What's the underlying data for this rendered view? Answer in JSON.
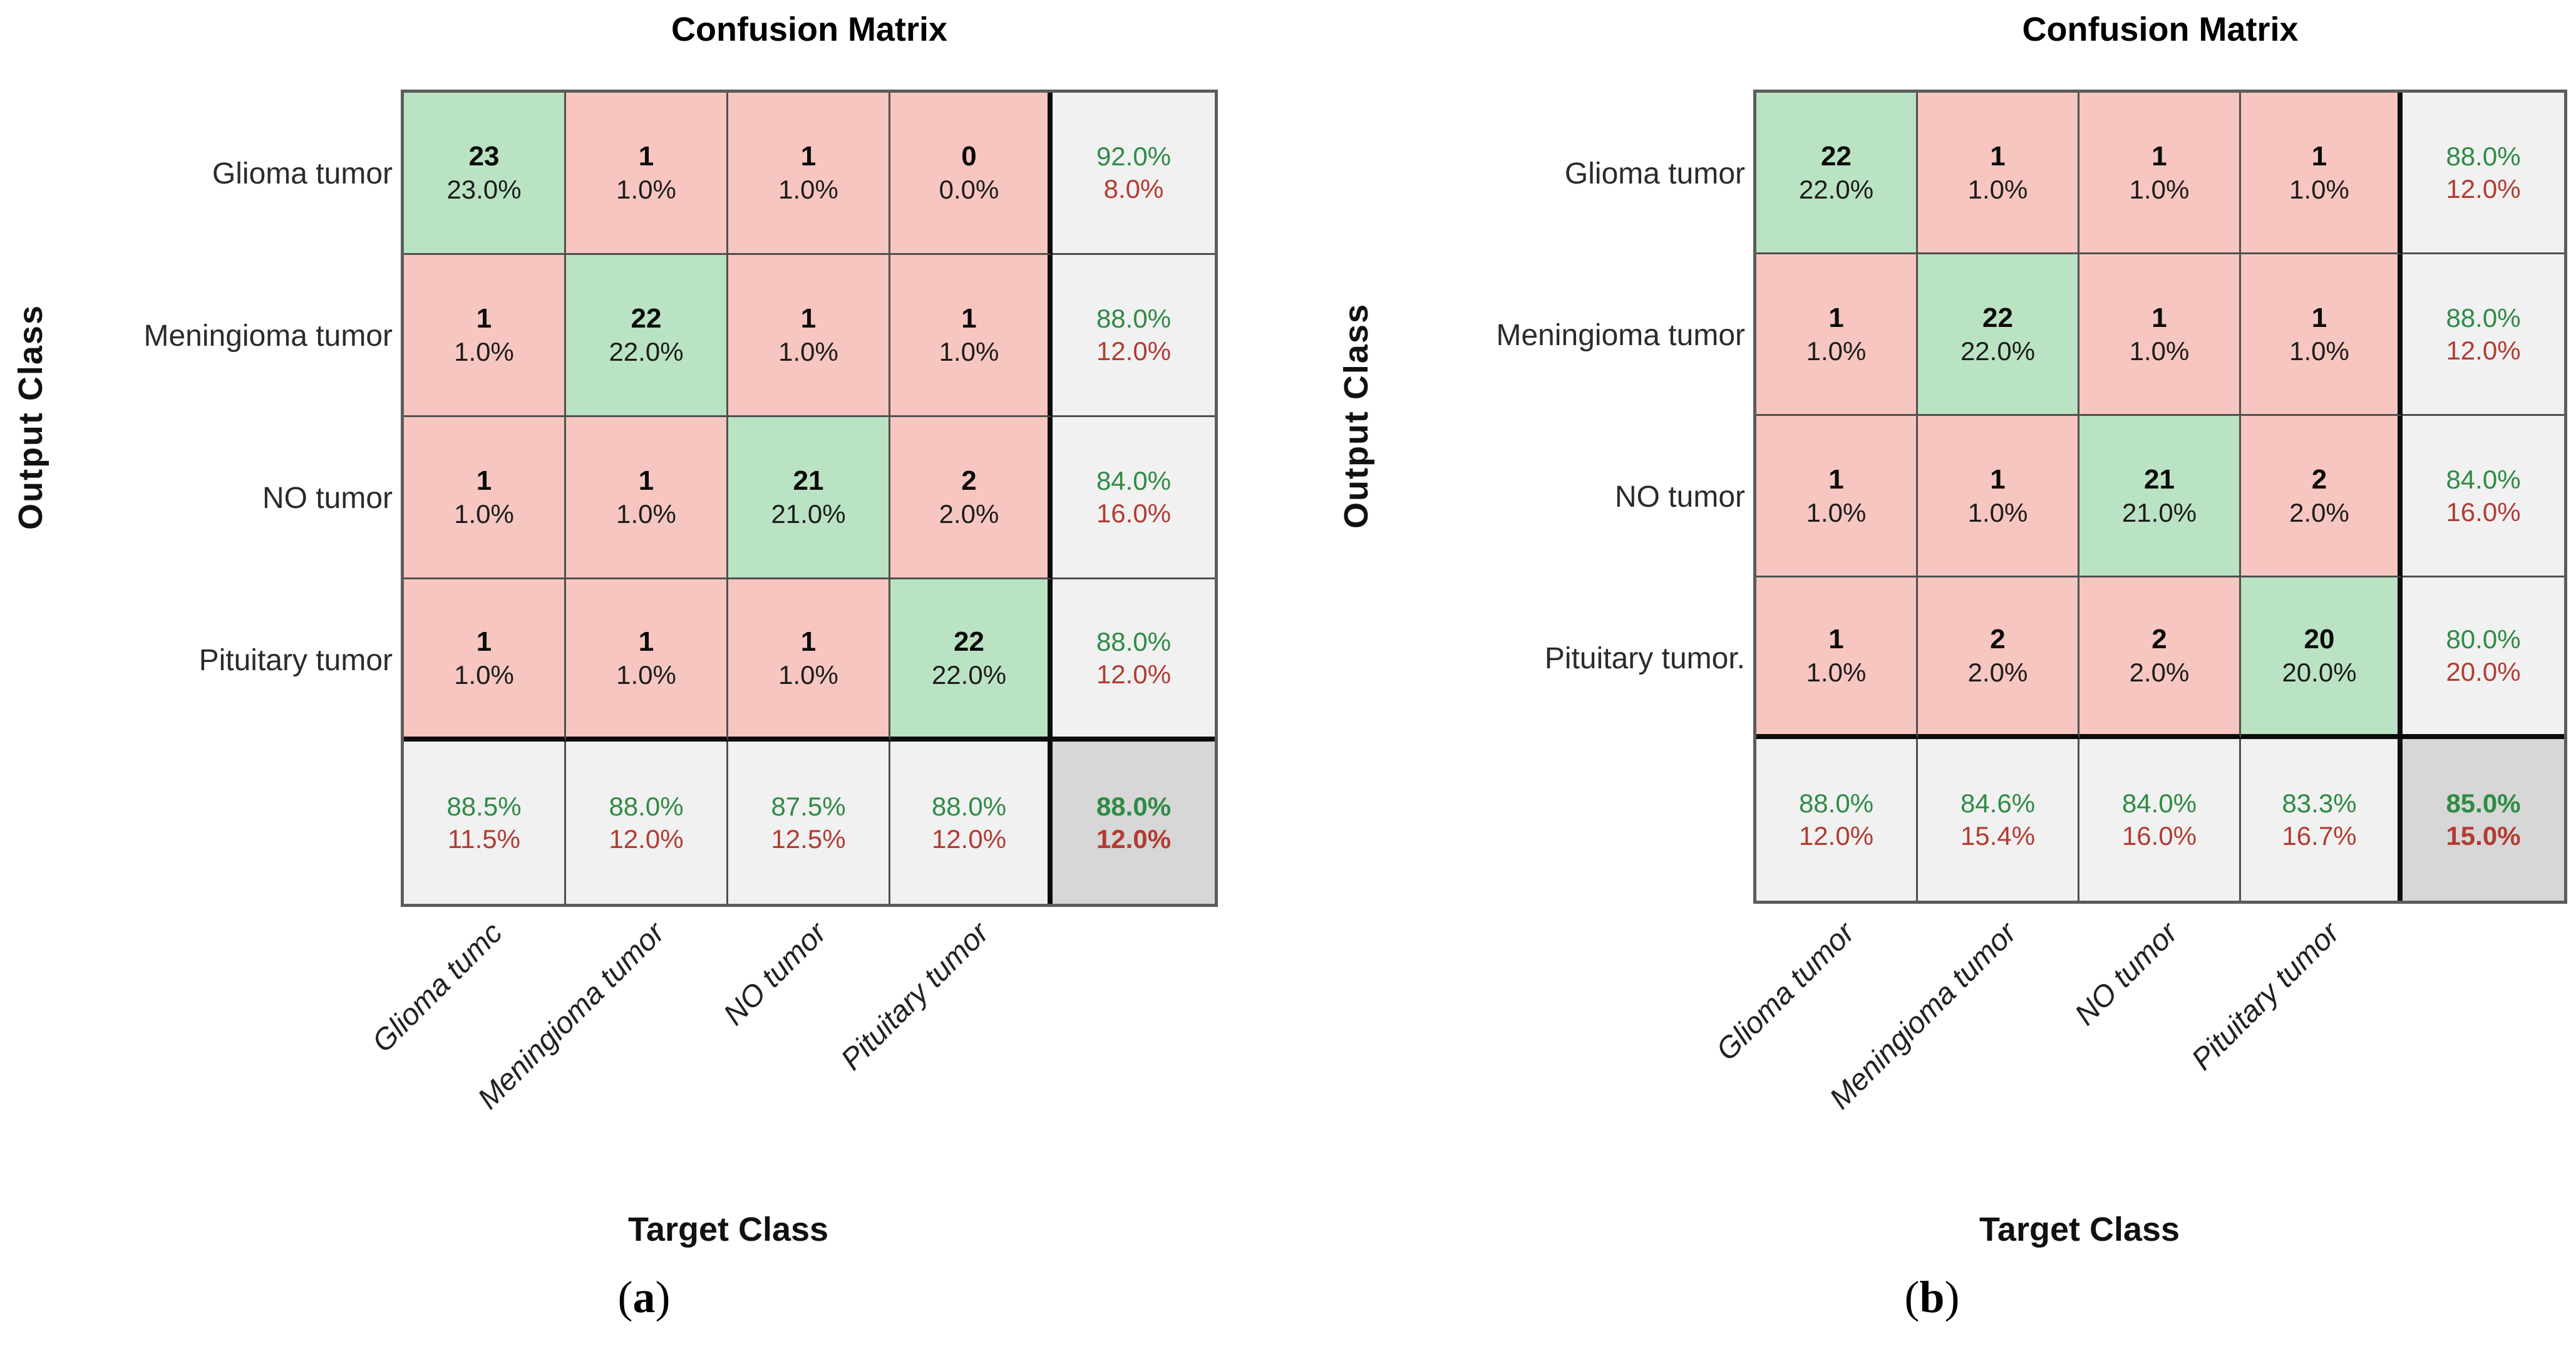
{
  "colors": {
    "diag_bg": "#bae3c3",
    "off_bg": "#f7c6c0",
    "summary_bg": "#f1f1f1",
    "corner_bg": "#d7d7d7",
    "green_text": "#2e8b44",
    "red_text": "#b23b32",
    "grid_line": "#4f4f4f",
    "thick_line": "#0c0c0c"
  },
  "panels": [
    {
      "caption_open": "(",
      "caption_letter": "a",
      "caption_close": ")",
      "title": "Confusion Matrix",
      "y_axis_label": "Output Class",
      "x_axis_label": "Target Class",
      "row_labels": [
        "Glioma tumor",
        "Meningioma tumor",
        "NO tumor",
        "Pituitary tumor"
      ],
      "col_labels": [
        "Glioma tumc",
        "Meningioma tumor",
        "NO tumor",
        "Pituitary tumor"
      ],
      "cells": [
        [
          {
            "count": "23",
            "pct": "23.0%"
          },
          {
            "count": "1",
            "pct": "1.0%"
          },
          {
            "count": "1",
            "pct": "1.0%"
          },
          {
            "count": "0",
            "pct": "0.0%"
          }
        ],
        [
          {
            "count": "1",
            "pct": "1.0%"
          },
          {
            "count": "22",
            "pct": "22.0%"
          },
          {
            "count": "1",
            "pct": "1.0%"
          },
          {
            "count": "1",
            "pct": "1.0%"
          }
        ],
        [
          {
            "count": "1",
            "pct": "1.0%"
          },
          {
            "count": "1",
            "pct": "1.0%"
          },
          {
            "count": "21",
            "pct": "21.0%"
          },
          {
            "count": "2",
            "pct": "2.0%"
          }
        ],
        [
          {
            "count": "1",
            "pct": "1.0%"
          },
          {
            "count": "1",
            "pct": "1.0%"
          },
          {
            "count": "1",
            "pct": "1.0%"
          },
          {
            "count": "22",
            "pct": "22.0%"
          }
        ]
      ],
      "row_summary": [
        {
          "green": "92.0%",
          "red": "8.0%"
        },
        {
          "green": "88.0%",
          "red": "12.0%"
        },
        {
          "green": "84.0%",
          "red": "16.0%"
        },
        {
          "green": "88.0%",
          "red": "12.0%"
        }
      ],
      "col_summary": [
        {
          "green": "88.5%",
          "red": "11.5%"
        },
        {
          "green": "88.0%",
          "red": "12.0%"
        },
        {
          "green": "87.5%",
          "red": "12.5%"
        },
        {
          "green": "88.0%",
          "red": "12.0%"
        }
      ],
      "total": {
        "green": "88.0%",
        "red": "12.0%"
      }
    },
    {
      "caption_open": "(",
      "caption_letter": "b",
      "caption_close": ")",
      "title": "Confusion Matrix",
      "y_axis_label": "Output Class",
      "x_axis_label": "Target Class",
      "row_labels": [
        "Glioma tumor",
        "Meningioma tumor",
        "NO tumor",
        "Pituitary tumor."
      ],
      "col_labels": [
        "Glioma tumor",
        "Meningioma tumor",
        "NO tumor",
        "Pituitary tumor"
      ],
      "cells": [
        [
          {
            "count": "22",
            "pct": "22.0%"
          },
          {
            "count": "1",
            "pct": "1.0%"
          },
          {
            "count": "1",
            "pct": "1.0%"
          },
          {
            "count": "1",
            "pct": "1.0%"
          }
        ],
        [
          {
            "count": "1",
            "pct": "1.0%"
          },
          {
            "count": "22",
            "pct": "22.0%"
          },
          {
            "count": "1",
            "pct": "1.0%"
          },
          {
            "count": "1",
            "pct": "1.0%"
          }
        ],
        [
          {
            "count": "1",
            "pct": "1.0%"
          },
          {
            "count": "1",
            "pct": "1.0%"
          },
          {
            "count": "21",
            "pct": "21.0%"
          },
          {
            "count": "2",
            "pct": "2.0%"
          }
        ],
        [
          {
            "count": "1",
            "pct": "1.0%"
          },
          {
            "count": "2",
            "pct": "2.0%"
          },
          {
            "count": "2",
            "pct": "2.0%"
          },
          {
            "count": "20",
            "pct": "20.0%"
          }
        ]
      ],
      "row_summary": [
        {
          "green": "88.0%",
          "red": "12.0%"
        },
        {
          "green": "88.0%",
          "red": "12.0%"
        },
        {
          "green": "84.0%",
          "red": "16.0%"
        },
        {
          "green": "80.0%",
          "red": "20.0%"
        }
      ],
      "col_summary": [
        {
          "green": "88.0%",
          "red": "12.0%"
        },
        {
          "green": "84.6%",
          "red": "15.4%"
        },
        {
          "green": "84.0%",
          "red": "16.0%"
        },
        {
          "green": "83.3%",
          "red": "16.7%"
        }
      ],
      "total": {
        "green": "85.0%",
        "red": "15.0%"
      }
    }
  ],
  "chart_data": [
    {
      "type": "heatmap",
      "title": "Confusion Matrix",
      "xlabel": "Target Class",
      "ylabel": "Output Class",
      "classes": [
        "Glioma tumor",
        "Meningioma tumor",
        "NO tumor",
        "Pituitary tumor"
      ],
      "matrix_counts": [
        [
          23,
          1,
          1,
          0
        ],
        [
          1,
          22,
          1,
          1
        ],
        [
          1,
          1,
          21,
          2
        ],
        [
          1,
          1,
          1,
          22
        ]
      ],
      "matrix_pct_of_total": [
        [
          23.0,
          1.0,
          1.0,
          0.0
        ],
        [
          1.0,
          22.0,
          1.0,
          1.0
        ],
        [
          1.0,
          1.0,
          21.0,
          2.0
        ],
        [
          1.0,
          1.0,
          1.0,
          22.0
        ]
      ],
      "row_summary_green_pct": [
        92.0,
        88.0,
        84.0,
        88.0
      ],
      "row_summary_red_pct": [
        8.0,
        12.0,
        16.0,
        12.0
      ],
      "col_summary_green_pct": [
        88.5,
        88.0,
        87.5,
        88.0
      ],
      "col_summary_red_pct": [
        11.5,
        12.0,
        12.5,
        12.0
      ],
      "overall_accuracy_pct": 88.0,
      "overall_error_pct": 12.0,
      "legend_position": "none",
      "grid": true
    },
    {
      "type": "heatmap",
      "title": "Confusion Matrix",
      "xlabel": "Target Class",
      "ylabel": "Output Class",
      "classes": [
        "Glioma tumor",
        "Meningioma tumor",
        "NO tumor",
        "Pituitary tumor"
      ],
      "matrix_counts": [
        [
          22,
          1,
          1,
          1
        ],
        [
          1,
          22,
          1,
          1
        ],
        [
          1,
          1,
          21,
          2
        ],
        [
          1,
          2,
          2,
          20
        ]
      ],
      "matrix_pct_of_total": [
        [
          22.0,
          1.0,
          1.0,
          1.0
        ],
        [
          1.0,
          22.0,
          1.0,
          1.0
        ],
        [
          1.0,
          1.0,
          21.0,
          2.0
        ],
        [
          1.0,
          2.0,
          2.0,
          20.0
        ]
      ],
      "row_summary_green_pct": [
        88.0,
        88.0,
        84.0,
        80.0
      ],
      "row_summary_red_pct": [
        12.0,
        12.0,
        16.0,
        20.0
      ],
      "col_summary_green_pct": [
        88.0,
        84.6,
        84.0,
        83.3
      ],
      "col_summary_red_pct": [
        12.0,
        15.4,
        16.0,
        16.7
      ],
      "overall_accuracy_pct": 85.0,
      "overall_error_pct": 15.0,
      "legend_position": "none",
      "grid": true
    }
  ]
}
